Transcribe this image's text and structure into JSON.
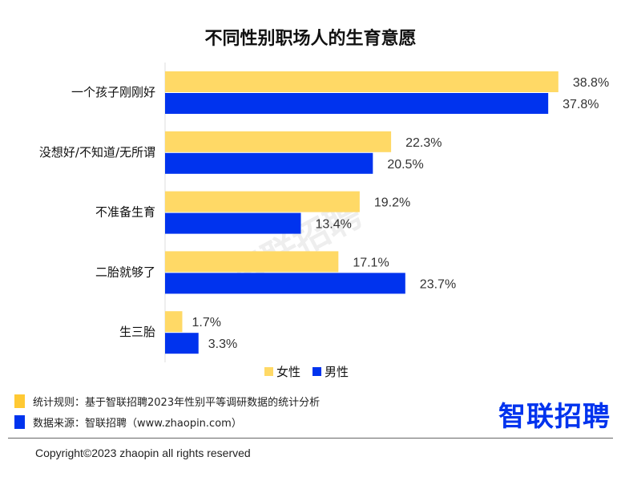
{
  "chart_data": {
    "type": "bar",
    "orientation": "horizontal",
    "title": "不同性别职场人的生育意愿",
    "categories": [
      "一个孩子刚刚好",
      "没想好/不知道/无所谓",
      "不准备生育",
      "二胎就够了",
      "生三胎"
    ],
    "series": [
      {
        "name": "女性",
        "color": "#FFD966",
        "values": [
          38.8,
          22.3,
          19.2,
          17.1,
          1.7
        ],
        "labels": [
          "38.8%",
          "22.3%",
          "19.2%",
          "17.1%",
          "1.7%"
        ]
      },
      {
        "name": "男性",
        "color": "#0033EE",
        "values": [
          37.8,
          20.5,
          13.4,
          23.7,
          3.3
        ],
        "labels": [
          "37.8%",
          "20.5%",
          "13.4%",
          "23.7%",
          "3.3%"
        ]
      }
    ],
    "xlim": [
      0,
      40
    ],
    "grid": false,
    "legend": "bottom"
  },
  "watermark": "智联招聘",
  "footer": {
    "rule": "统计规则：基于智联招聘2023年性别平等调研数据的统计分析",
    "source": "数据来源：智联招聘（www.zhaopin.com）",
    "logo": "智联招聘",
    "copyright": "Copyright©2023 zhaopin all rights reserved"
  }
}
